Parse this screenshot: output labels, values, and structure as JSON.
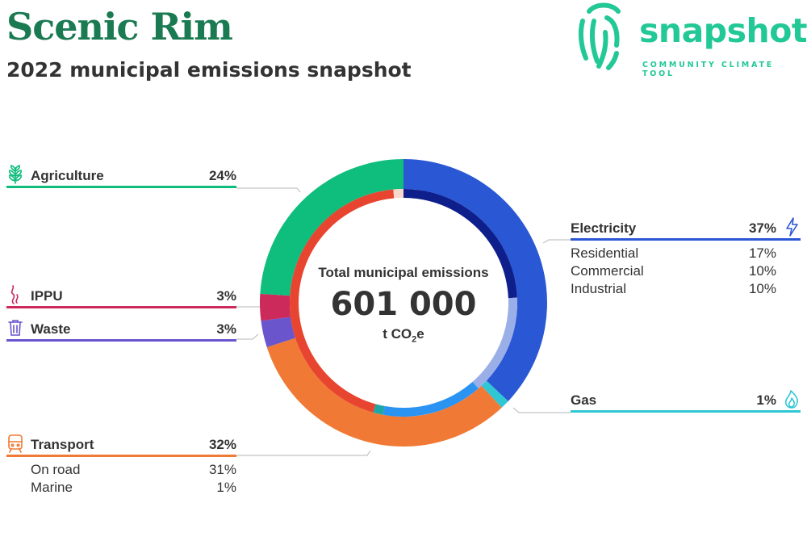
{
  "header": {
    "title": "Scenic Rim",
    "subtitle": "2022 municipal emissions snapshot"
  },
  "logo": {
    "word": "snapshot",
    "tagline": "COMMUNITY CLIMATE TOOL"
  },
  "center": {
    "label": "Total municipal emissions",
    "value": "601 000",
    "unit_prefix": "t CO",
    "unit_sub": "2",
    "unit_suffix": "e"
  },
  "sectors": {
    "electricity": {
      "name": "Electricity",
      "pct": "37%",
      "icon": "lightning-icon",
      "color": "#2a57d4",
      "subs": [
        {
          "name": "Residential",
          "pct": "17%"
        },
        {
          "name": "Commercial",
          "pct": "10%"
        },
        {
          "name": "Industrial",
          "pct": "10%"
        }
      ]
    },
    "gas": {
      "name": "Gas",
      "pct": "1%",
      "icon": "flame-icon",
      "color": "#2fc7d4"
    },
    "transport": {
      "name": "Transport",
      "pct": "32%",
      "icon": "train-icon",
      "color": "#f07a35",
      "subs": [
        {
          "name": "On road",
          "pct": "31%"
        },
        {
          "name": "Marine",
          "pct": "1%"
        }
      ]
    },
    "waste": {
      "name": "Waste",
      "pct": "3%",
      "icon": "trash-bin-icon",
      "color": "#6a55cc"
    },
    "ippu": {
      "name": "IPPU",
      "pct": "3%",
      "icon": "smoke-icon",
      "color": "#cc2a5a"
    },
    "agriculture": {
      "name": "Agriculture",
      "pct": "24%",
      "icon": "plant-icon",
      "color": "#0fbd7d"
    }
  },
  "chart_data": {
    "type": "pie",
    "subtype": "nested-donut",
    "total": 601000,
    "unit": "t CO2e",
    "outer": [
      {
        "name": "Electricity",
        "value": 37,
        "color": "#2a57d4"
      },
      {
        "name": "Gas",
        "value": 1,
        "color": "#2fc7d4"
      },
      {
        "name": "Transport",
        "value": 32,
        "color": "#f07a35"
      },
      {
        "name": "Waste",
        "value": 3,
        "color": "#6a55cc"
      },
      {
        "name": "IPPU",
        "value": 3,
        "color": "#cc2a5a"
      },
      {
        "name": "Agriculture",
        "value": 24,
        "color": "#0fbd7d"
      }
    ],
    "inner": [
      {
        "name": "Residential",
        "value": 17,
        "color": "#0e1f8c"
      },
      {
        "name": "Commercial",
        "value": 10,
        "color": "#9aaee8"
      },
      {
        "name": "Industrial",
        "value": 10,
        "color": "#2b93f2"
      },
      {
        "name": "Gas",
        "value": 1,
        "color": "#1fa6a6"
      },
      {
        "name": "On road",
        "value": 31,
        "color": "#e84530"
      },
      {
        "name": "Marine",
        "value": 1,
        "color": "#f8d8cc"
      }
    ]
  }
}
